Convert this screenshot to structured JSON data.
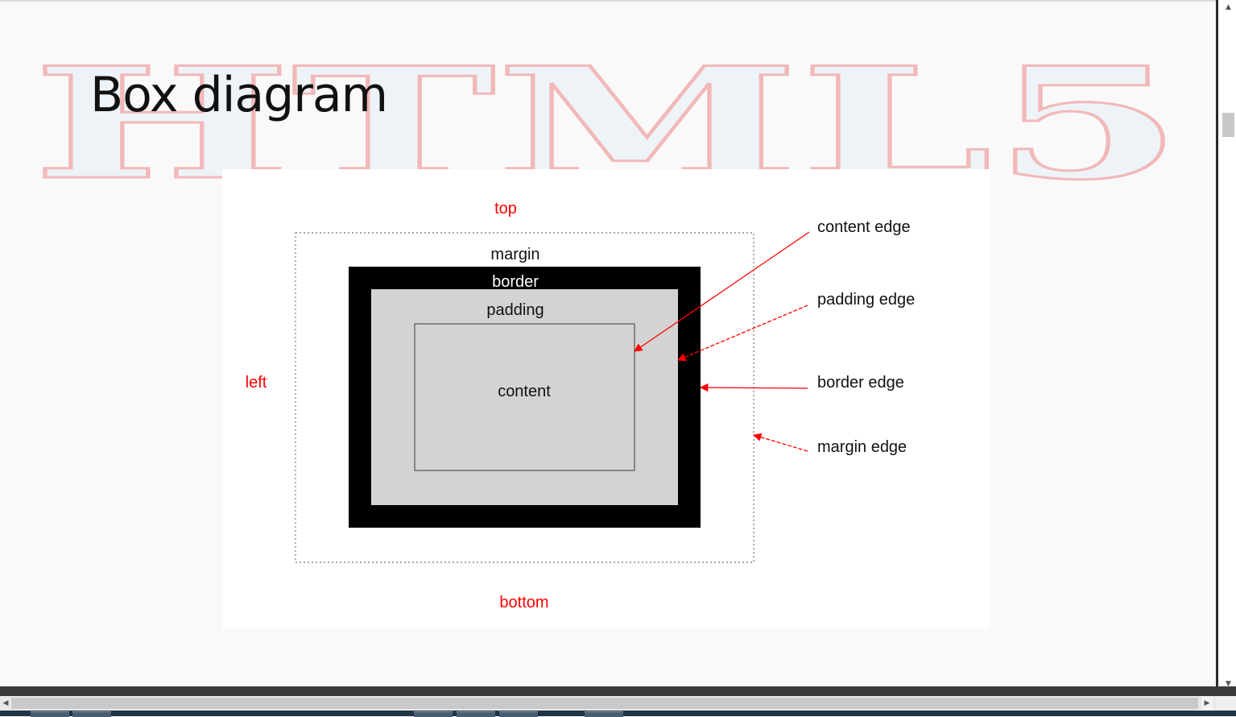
{
  "slide": {
    "title": "Box diagram",
    "watermark_text": "HTML5"
  },
  "diagram": {
    "side_labels": {
      "top": "top",
      "bottom": "bottom",
      "left": "left"
    },
    "layer_labels": {
      "margin": "margin",
      "border": "border",
      "padding": "padding",
      "content": "content"
    },
    "edge_labels": {
      "content_edge": "content edge",
      "padding_edge": "padding edge",
      "border_edge": "border edge",
      "margin_edge": "margin edge"
    }
  },
  "colors": {
    "accent_red": "#ff0000",
    "border_black": "#000000",
    "padding_gray": "#d3d3d3",
    "watermark_outline": "#f2b8b8",
    "watermark_fill": "#eef3f8"
  },
  "scrollbars": {
    "vertical": {
      "up_icon": "▲",
      "down_icon": "▼"
    },
    "horizontal": {
      "left_icon": "◀",
      "right_icon": "▶"
    }
  }
}
